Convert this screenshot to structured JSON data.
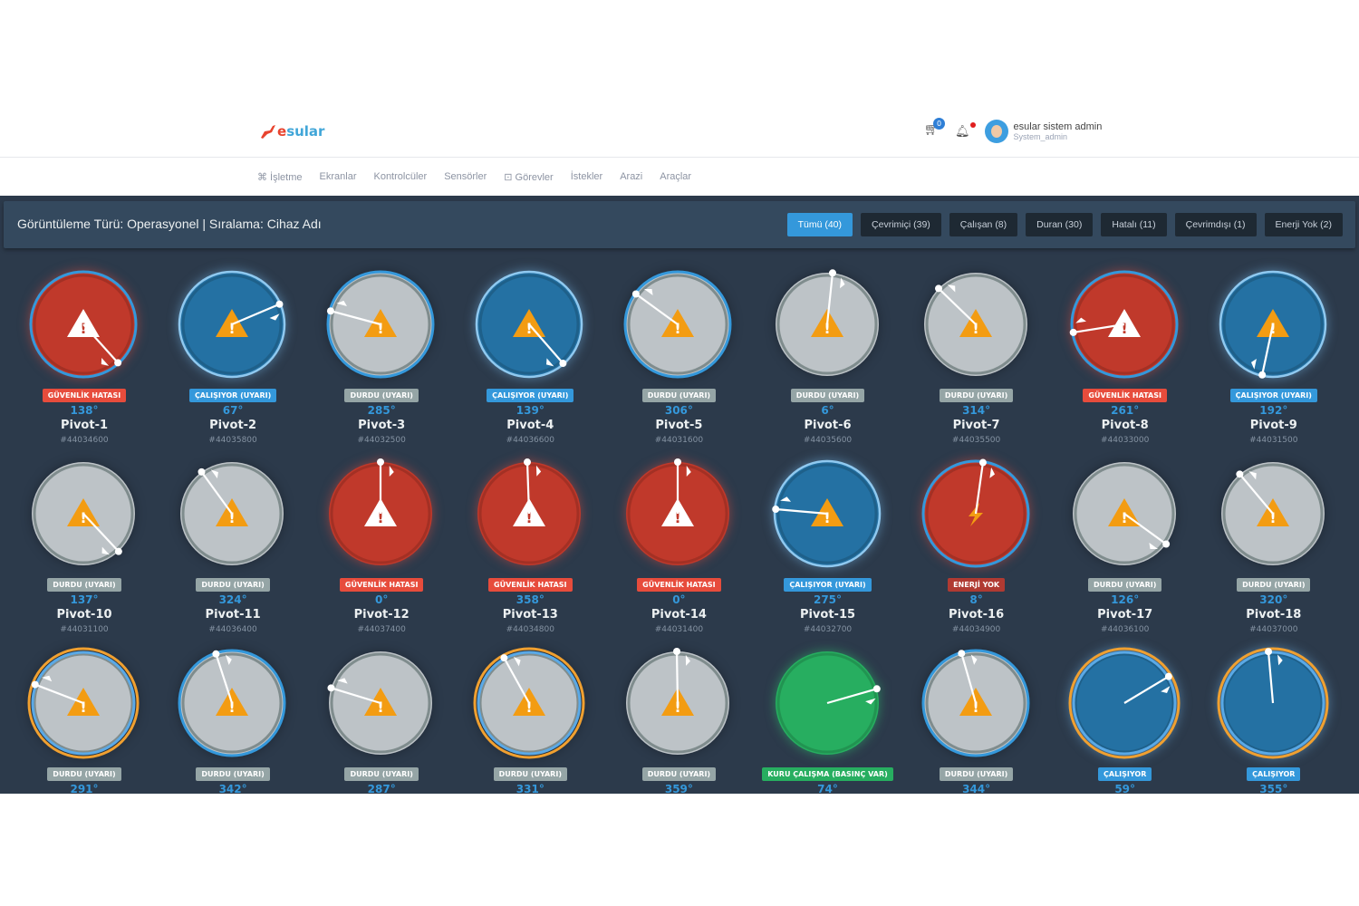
{
  "brand": {
    "logo_text_a": "e",
    "logo_text_b": "sular"
  },
  "user": {
    "name": "esular sistem admin",
    "role": "System_admin",
    "cart_count": "0"
  },
  "nav": [
    "⌘ İşletme",
    "Ekranlar",
    "Kontrolcüler",
    "Sensörler",
    "⊡ Görevler",
    "İstekler",
    "Arazi",
    "Araçlar"
  ],
  "header": {
    "title": "Görüntüleme Türü: Operasyonel | Sıralama: Cihaz Adı"
  },
  "filters": [
    {
      "label": "Tümü (40)",
      "active": true
    },
    {
      "label": "Çevrimiçi (39)"
    },
    {
      "label": "Çalışan (8)"
    },
    {
      "label": "Duran (30)"
    },
    {
      "label": "Hatalı (11)"
    },
    {
      "label": "Çevrimdışı (1)"
    },
    {
      "label": "Enerji Yok (2)"
    }
  ],
  "colors": {
    "red": "#c0392b",
    "blue": "#2471a3",
    "gray": "#bdc3c7",
    "green": "#27ae60",
    "badge_red": "#e74c3c",
    "badge_blue": "#3498db",
    "badge_gray": "#95a5a6",
    "badge_green": "#27ae60",
    "badge_power": "#b03a32",
    "warning": "#f39c12"
  },
  "pivots": [
    {
      "name": "Pivot-1",
      "id": "#44034600",
      "status": "GÜVENLİK HATASI",
      "badge": "red",
      "angle": 138,
      "fill": "red",
      "ring": "blue",
      "icon": "warning-white"
    },
    {
      "name": "Pivot-2",
      "id": "#44035800",
      "status": "ÇALIŞIYOR (UYARI)",
      "badge": "blue",
      "angle": 67,
      "fill": "blue",
      "ring": "glow",
      "icon": "warning-orange"
    },
    {
      "name": "Pivot-3",
      "id": "#44032500",
      "status": "DURDU (UYARI)",
      "badge": "gray",
      "angle": 285,
      "fill": "gray",
      "ring": "blue",
      "icon": "warning-orange"
    },
    {
      "name": "Pivot-4",
      "id": "#44036600",
      "status": "ÇALIŞIYOR (UYARI)",
      "badge": "blue",
      "angle": 139,
      "fill": "blue",
      "ring": "glow",
      "icon": "warning-orange"
    },
    {
      "name": "Pivot-5",
      "id": "#44031600",
      "status": "DURDU (UYARI)",
      "badge": "gray",
      "angle": 306,
      "fill": "gray",
      "ring": "blue",
      "icon": "warning-orange"
    },
    {
      "name": "Pivot-6",
      "id": "#44035600",
      "status": "DURDU (UYARI)",
      "badge": "gray",
      "angle": 6,
      "fill": "gray",
      "ring": "gray",
      "icon": "warning-orange"
    },
    {
      "name": "Pivot-7",
      "id": "#44035500",
      "status": "DURDU (UYARI)",
      "badge": "gray",
      "angle": 314,
      "fill": "gray",
      "ring": "gray",
      "icon": "warning-orange"
    },
    {
      "name": "Pivot-8",
      "id": "#44033000",
      "status": "GÜVENLİK HATASI",
      "badge": "red",
      "angle": 261,
      "fill": "red",
      "ring": "blue",
      "icon": "warning-white"
    },
    {
      "name": "Pivot-9",
      "id": "#44031500",
      "status": "ÇALIŞIYOR (UYARI)",
      "badge": "blue",
      "angle": 192,
      "fill": "blue",
      "ring": "glow",
      "icon": "warning-orange"
    },
    {
      "name": "Pivot-10",
      "id": "#44031100",
      "status": "DURDU (UYARI)",
      "badge": "gray",
      "angle": 137,
      "fill": "gray",
      "ring": "gray",
      "icon": "warning-orange"
    },
    {
      "name": "Pivot-11",
      "id": "#44036400",
      "status": "DURDU (UYARI)",
      "badge": "gray",
      "angle": 324,
      "fill": "gray",
      "ring": "gray",
      "icon": "warning-orange"
    },
    {
      "name": "Pivot-12",
      "id": "#44037400",
      "status": "GÜVENLİK HATASI",
      "badge": "red",
      "angle": 0,
      "fill": "red",
      "ring": "red",
      "icon": "warning-white"
    },
    {
      "name": "Pivot-13",
      "id": "#44034800",
      "status": "GÜVENLİK HATASI",
      "badge": "red",
      "angle": 358,
      "fill": "red",
      "ring": "red",
      "icon": "warning-white"
    },
    {
      "name": "Pivot-14",
      "id": "#44031400",
      "status": "GÜVENLİK HATASI",
      "badge": "red",
      "angle": 0,
      "fill": "red",
      "ring": "red",
      "icon": "warning-white"
    },
    {
      "name": "Pivot-15",
      "id": "#44032700",
      "status": "ÇALIŞIYOR (UYARI)",
      "badge": "blue",
      "angle": 275,
      "fill": "blue",
      "ring": "glow",
      "icon": "warning-orange"
    },
    {
      "name": "Pivot-16",
      "id": "#44034900",
      "status": "ENERJİ YOK",
      "badge": "power",
      "angle": 8,
      "fill": "red",
      "ring": "blue",
      "icon": "lightning"
    },
    {
      "name": "Pivot-17",
      "id": "#44036100",
      "status": "DURDU (UYARI)",
      "badge": "gray",
      "angle": 126,
      "fill": "gray",
      "ring": "gray",
      "icon": "warning-orange"
    },
    {
      "name": "Pivot-18",
      "id": "#44037000",
      "status": "DURDU (UYARI)",
      "badge": "gray",
      "angle": 320,
      "fill": "gray",
      "ring": "gray",
      "icon": "warning-orange"
    },
    {
      "status": "DURDU (UYARI)",
      "badge": "gray",
      "angle": 291,
      "fill": "gray",
      "ring": "orange",
      "icon": "warning-orange"
    },
    {
      "status": "DURDU (UYARI)",
      "badge": "gray",
      "angle": 342,
      "fill": "gray",
      "ring": "blue",
      "icon": "warning-orange"
    },
    {
      "status": "DURDU (UYARI)",
      "badge": "gray",
      "angle": 287,
      "fill": "gray",
      "ring": "gray",
      "icon": "warning-orange"
    },
    {
      "status": "DURDU (UYARI)",
      "badge": "gray",
      "angle": 331,
      "fill": "gray",
      "ring": "orange",
      "icon": "warning-orange"
    },
    {
      "status": "DURDU (UYARI)",
      "badge": "gray",
      "angle": 359,
      "fill": "gray",
      "ring": "gray",
      "icon": "warning-orange"
    },
    {
      "status": "KURU ÇALIŞMA (BASINÇ VAR)",
      "badge": "green",
      "angle": 74,
      "fill": "green",
      "ring": "green",
      "icon": "none"
    },
    {
      "status": "DURDU (UYARI)",
      "badge": "gray",
      "angle": 344,
      "fill": "gray",
      "ring": "blue",
      "icon": "warning-orange"
    },
    {
      "status": "ÇALIŞIYOR",
      "badge": "blue",
      "angle": 59,
      "fill": "blue",
      "ring": "orange",
      "icon": "none"
    },
    {
      "status": "ÇALIŞIYOR",
      "badge": "blue",
      "angle": 355,
      "fill": "blue",
      "ring": "orange",
      "icon": "none"
    }
  ]
}
